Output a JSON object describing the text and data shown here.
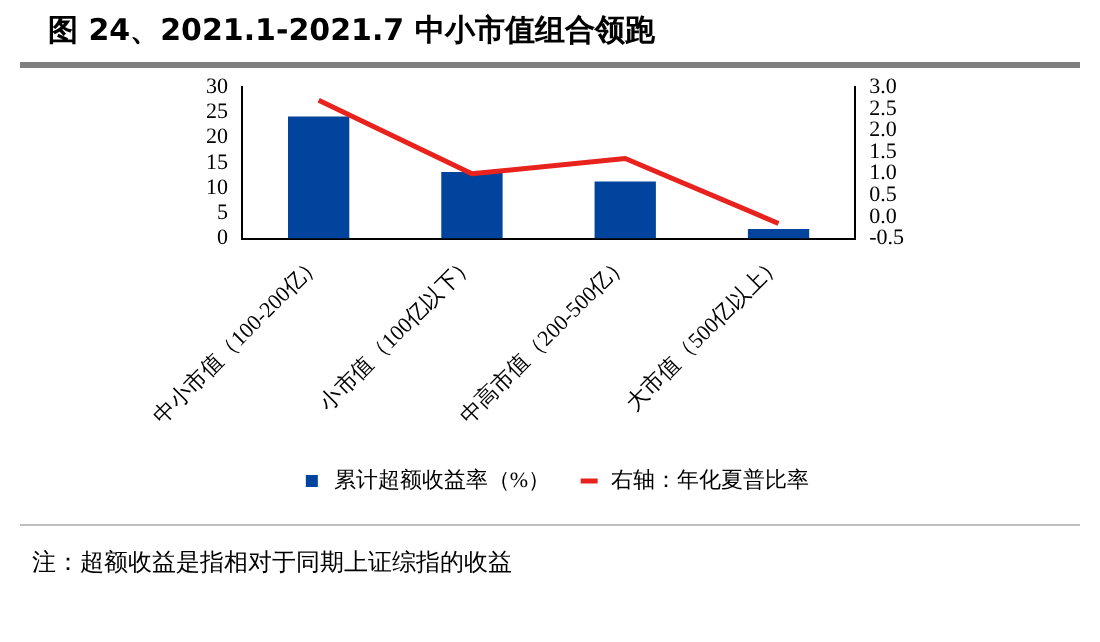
{
  "chart_data": {
    "type": "bar",
    "title": "图 24、2021.1-2021.7 中小市值组合领跑",
    "categories": [
      "中小市值（100-200亿）",
      "小市值（100亿以下）",
      "中高市值（200-500亿）",
      "大市值（500亿以上）"
    ],
    "series": [
      {
        "name": "累计超额收益率（%）",
        "color": "#00449e",
        "values": [
          24.2,
          13.2,
          11.3,
          1.9
        ]
      },
      {
        "name": "右轴：年化夏普比率",
        "type": "line",
        "axis": "y2",
        "color": "#e8221d",
        "marker": "none",
        "values": [
          2.7,
          1.0,
          1.35,
          -0.15
        ]
      }
    ],
    "ylim": [
      0,
      30
    ],
    "yticks": [
      0,
      5,
      10,
      15,
      20,
      25,
      30
    ],
    "y2lim": [
      -0.5,
      3.0
    ],
    "y2ticks": [
      -0.5,
      {
        "value": 0,
        "label": "0.0"
      },
      0.5,
      {
        "value": 1,
        "label": "1.0"
      },
      1.5,
      {
        "value": 2,
        "label": "2.0"
      },
      2.5,
      {
        "value": 3,
        "label": "3.0"
      }
    ],
    "grid": false,
    "legend": "bottom",
    "annotations": [
      "注：超额收益是指相对于同期上证综指的收益"
    ]
  }
}
